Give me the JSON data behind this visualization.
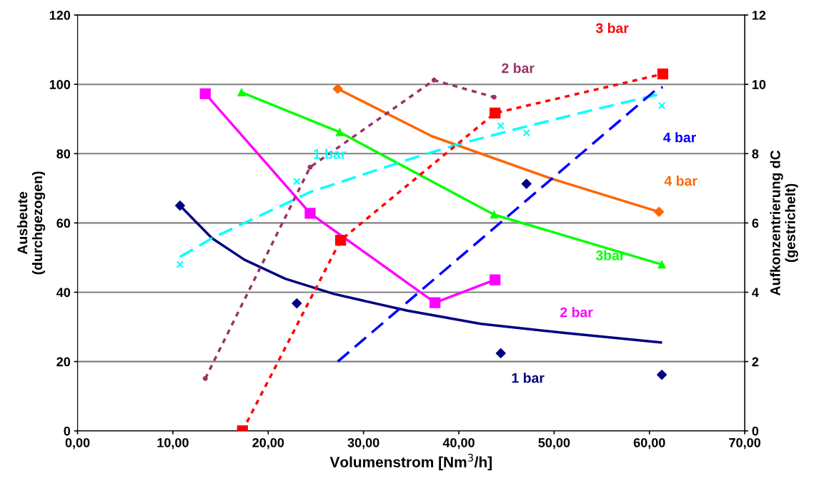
{
  "chart_data": {
    "type": "line",
    "xlabel": "Volumenstrom [Nm$^{3}$/h]",
    "ylabel": "Ausbeute\n(durchgezogen)",
    "y2label": "Aufkonzentrierung dC\n(gestrichelt)",
    "xlim": [
      0,
      70
    ],
    "xticks": [
      {
        "value": 0,
        "label": "0,00"
      },
      {
        "value": 10,
        "label": "10,00"
      },
      {
        "value": 20,
        "label": "20,00"
      },
      {
        "value": 30,
        "label": "30,00"
      },
      {
        "value": 40,
        "label": "40,00"
      },
      {
        "value": 50,
        "label": "50,00"
      },
      {
        "value": 60,
        "label": "60,00"
      },
      {
        "value": 70,
        "label": "70,00"
      }
    ],
    "ylim": [
      0,
      120
    ],
    "yticks": [
      0,
      20,
      40,
      60,
      80,
      100,
      120
    ],
    "y2lim": [
      0,
      12
    ],
    "y2ticks": [
      0,
      2,
      4,
      6,
      8,
      10,
      12
    ],
    "grid": "y",
    "legend": false,
    "series": [
      {
        "name": "1 bar",
        "color": "#000080",
        "marker": "none",
        "line_style": "solid",
        "x": [
          10.75,
          14.1,
          17.5,
          21.8,
          26.9,
          34.6,
          42.3,
          51.3,
          61.2
        ],
        "values": [
          65.0,
          55.6,
          49.4,
          43.9,
          39.5,
          34.7,
          30.9,
          28.2,
          25.5
        ]
      },
      {
        "type": "scatter",
        "color": "#000080",
        "marker": "diamond",
        "x": [
          10.75,
          23.0,
          44.4,
          47.1,
          61.3
        ],
        "values": [
          65.0,
          36.8,
          22.4,
          71.3,
          16.2
        ]
      },
      {
        "name": "2 bar",
        "color": "#ff00ff",
        "marker": "square",
        "line_style": "solid",
        "x": [
          13.4,
          24.4,
          37.5,
          43.8
        ],
        "values": [
          97.3,
          62.8,
          37.0,
          43.6
        ]
      },
      {
        "name": "3bar",
        "color": "#00ff00",
        "marker": "triangle",
        "line_style": "solid",
        "x": [
          17.2,
          27.5,
          43.7,
          61.3
        ],
        "values": [
          97.7,
          86.2,
          62.4,
          48.0
        ]
      },
      {
        "name": "4 bar",
        "color": "#ff6600",
        "marker": "none",
        "line_style": "solid",
        "x": [
          27.3,
          37.2,
          49.8,
          61.0
        ],
        "values": [
          98.7,
          85.0,
          72.7,
          63.2
        ]
      },
      {
        "type": "scatter",
        "color": "#ff6600",
        "marker": "diamond",
        "x": [
          27.3,
          61.0
        ],
        "values": [
          98.7,
          63.2
        ]
      },
      {
        "name": "1 bar",
        "axis": "y2",
        "color": "#00ffff",
        "marker": "none",
        "line_style": "dashed",
        "x": [
          10.75,
          14.1,
          24.4,
          34.6,
          39.8,
          46.9,
          53.9,
          60.8
        ],
        "values": [
          5.02,
          5.56,
          6.89,
          7.82,
          8.26,
          8.77,
          9.25,
          9.7
        ]
      },
      {
        "type": "scatter",
        "axis": "y2",
        "color": "#00ffff",
        "marker": "cross",
        "x": [
          10.75,
          23.0,
          44.4,
          47.1,
          61.3
        ],
        "values": [
          4.8,
          7.2,
          8.8,
          8.6,
          9.39
        ]
      },
      {
        "name": "2 bar",
        "axis": "y2",
        "color": "#993366",
        "marker": "circle",
        "line_style": "dotted",
        "x": [
          13.4,
          24.4,
          37.4,
          43.7
        ],
        "values": [
          1.51,
          7.61,
          10.12,
          9.63
        ]
      },
      {
        "name": "3 bar",
        "axis": "y2",
        "color": "#ff0000",
        "marker": "square",
        "line_style": "dotted",
        "x": [
          17.3,
          27.6,
          43.8,
          61.4
        ],
        "values": [
          0,
          5.5,
          9.17,
          10.3
        ]
      },
      {
        "name": "4 bar",
        "axis": "y2",
        "color": "#0000ff",
        "marker": "none",
        "line_style": "dashed",
        "x": [
          27.3,
          60.8,
          61.4
        ],
        "values": [
          2.0,
          9.87,
          9.92
        ]
      }
    ]
  }
}
